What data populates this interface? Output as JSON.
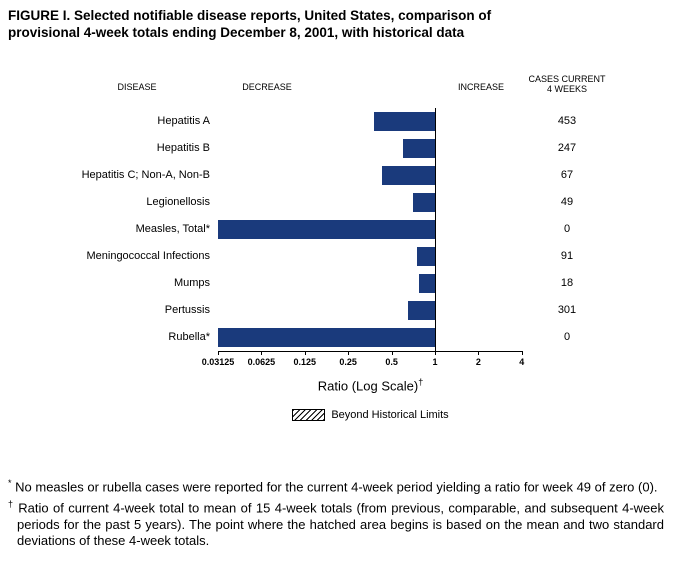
{
  "figure": {
    "title_line1": "FIGURE I. Selected notifiable disease reports, United States, comparison of",
    "title_line2": "provisional 4-week totals ending December 8, 2001, with historical data"
  },
  "chart_data": {
    "type": "bar",
    "orientation": "horizontal",
    "scale": "log",
    "title": "FIGURE I. Selected notifiable disease reports, United States, comparison of provisional 4-week totals ending December 8, 2001, with historical data",
    "headers": {
      "disease": "DISEASE",
      "decrease": "DECREASE",
      "increase": "INCREASE",
      "cases_line1": "CASES CURRENT",
      "cases_line2": "4 WEEKS"
    },
    "categories": [
      "Hepatitis A",
      "Hepatitis B",
      "Hepatitis C; Non-A, Non-B",
      "Legionellosis",
      "Measles, Total*",
      "Meningococcal Infections",
      "Mumps",
      "Pertussis",
      "Rubella*"
    ],
    "ratios": [
      0.38,
      0.6,
      0.43,
      0.7,
      0,
      0.75,
      0.77,
      0.65,
      0
    ],
    "cases_current_4_weeks": [
      453,
      247,
      67,
      49,
      0,
      91,
      18,
      301,
      0
    ],
    "x_ticks": [
      "0.03125",
      "0.0625",
      "0.125",
      "0.25",
      "0.5",
      "1",
      "2",
      "4"
    ],
    "x_range": [
      0.03125,
      4
    ],
    "reference_line": 1,
    "xlabel": "Ratio (Log Scale)",
    "xlabel_sup": "†",
    "legend": {
      "label": "Beyond Historical Limits",
      "swatch": "hatched"
    },
    "bar_color": "#1a3a7c",
    "grid": false
  },
  "footnotes": {
    "star_symbol": "*",
    "star_text": "No measles or rubella cases were reported for the current 4-week period yielding a ratio for week 49 of zero (0).",
    "dagger_symbol": "†",
    "dagger_text": "Ratio of current 4-week total to mean of 15 4-week totals (from previous, comparable, and subsequent 4-week periods for the past 5 years). The point where the hatched area begins is based on the mean and two standard deviations of these 4-week totals."
  }
}
